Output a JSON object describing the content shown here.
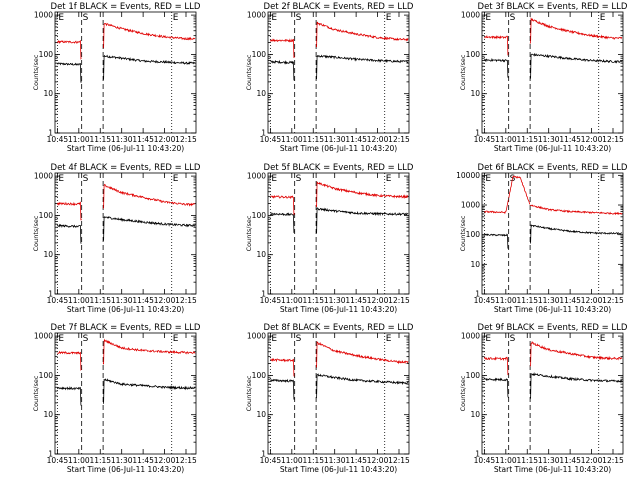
{
  "figure": {
    "background": "#ffffff",
    "series_colors": {
      "events": "#000000",
      "lld": "#e00000"
    },
    "marker_labels": {
      "e": "E",
      "s": "S"
    }
  },
  "chart_data": [
    {
      "type": "line",
      "title": "Det 1f BLACK = Events, RED = LLD",
      "xlabel": "Start Time (06-Jul-11 10:43:20)",
      "ylabel": "Counts/sec",
      "yscale": "log",
      "ylim": [
        1,
        1200
      ],
      "xlim": [
        "10:43:20",
        "12:22:00"
      ],
      "x_tick_labels": [
        "10:45",
        "11:00",
        "11:15",
        "11:30",
        "11:45",
        "12:00",
        "12:15"
      ],
      "y_tick_labels": [
        "1",
        "10",
        "100",
        "1000"
      ],
      "markers": {
        "E_start": "10:45",
        "S_start": "11:02",
        "S_end": "11:17",
        "E_end": "12:05"
      },
      "series": [
        {
          "name": "Events",
          "color": "#000000",
          "x": [
            "10:45",
            "11:00",
            "11:17",
            "11:30",
            "11:45",
            "12:00",
            "12:15"
          ],
          "values": [
            58,
            55,
            92,
            80,
            68,
            64,
            60
          ]
        },
        {
          "name": "LLD",
          "color": "#e00000",
          "x": [
            "10:45",
            "11:00",
            "11:17",
            "11:30",
            "11:45",
            "12:00",
            "12:15"
          ],
          "values": [
            210,
            205,
            620,
            450,
            340,
            280,
            250
          ]
        }
      ]
    },
    {
      "type": "line",
      "title": "Det 2f BLACK = Events, RED = LLD",
      "xlabel": "Start Time (06-Jul-11 10:43:20)",
      "ylabel": "Counts/sec",
      "yscale": "log",
      "ylim": [
        1,
        1200
      ],
      "xlim": [
        "10:43:20",
        "12:22:00"
      ],
      "x_tick_labels": [
        "10:45",
        "11:00",
        "11:15",
        "11:30",
        "11:45",
        "12:00",
        "12:15"
      ],
      "y_tick_labels": [
        "1",
        "10",
        "100",
        "1000"
      ],
      "markers": {
        "E_start": "10:45",
        "S_start": "11:02",
        "S_end": "11:17",
        "E_end": "12:05"
      },
      "series": [
        {
          "name": "Events",
          "color": "#000000",
          "x": [
            "10:45",
            "11:00",
            "11:17",
            "11:30",
            "11:45",
            "12:00",
            "12:15"
          ],
          "values": [
            65,
            62,
            92,
            85,
            75,
            70,
            66
          ]
        },
        {
          "name": "LLD",
          "color": "#e00000",
          "x": [
            "10:45",
            "11:00",
            "11:17",
            "11:30",
            "11:45",
            "12:00",
            "12:15"
          ],
          "values": [
            230,
            225,
            650,
            430,
            330,
            270,
            240
          ]
        }
      ]
    },
    {
      "type": "line",
      "title": "Det 3f BLACK = Events, RED = LLD",
      "xlabel": "Start Time (06-Jul-11 10:43:20)",
      "ylabel": "Counts/sec",
      "yscale": "log",
      "ylim": [
        1,
        1200
      ],
      "xlim": [
        "10:43:20",
        "12:22:00"
      ],
      "x_tick_labels": [
        "10:45",
        "11:00",
        "11:15",
        "11:30",
        "11:45",
        "12:00",
        "12:15"
      ],
      "y_tick_labels": [
        "1",
        "10",
        "100",
        "1000"
      ],
      "markers": {
        "E_start": "10:45",
        "S_start": "11:02",
        "S_end": "11:17",
        "E_end": "12:05"
      },
      "series": [
        {
          "name": "Events",
          "color": "#000000",
          "x": [
            "10:45",
            "11:00",
            "11:17",
            "11:30",
            "11:45",
            "12:00",
            "12:15"
          ],
          "values": [
            72,
            70,
            100,
            90,
            78,
            70,
            66
          ]
        },
        {
          "name": "LLD",
          "color": "#e00000",
          "x": [
            "10:45",
            "11:00",
            "11:17",
            "11:30",
            "11:45",
            "12:00",
            "12:15"
          ],
          "values": [
            280,
            270,
            800,
            520,
            380,
            300,
            260
          ]
        }
      ]
    },
    {
      "type": "line",
      "title": "Det 4f BLACK = Events, RED = LLD",
      "xlabel": "Start Time (06-Jul-11 10:43:20)",
      "ylabel": "Counts/sec",
      "yscale": "log",
      "ylim": [
        1,
        1200
      ],
      "xlim": [
        "10:43:20",
        "12:22:00"
      ],
      "x_tick_labels": [
        "10:45",
        "11:00",
        "11:15",
        "11:30",
        "11:45",
        "12:00",
        "12:15"
      ],
      "y_tick_labels": [
        "1",
        "10",
        "100",
        "1000"
      ],
      "markers": {
        "E_start": "10:45",
        "S_start": "11:02",
        "S_end": "11:17",
        "E_end": "12:05"
      },
      "series": [
        {
          "name": "Events",
          "color": "#000000",
          "x": [
            "10:45",
            "11:00",
            "11:17",
            "11:30",
            "11:45",
            "12:00",
            "12:15"
          ],
          "values": [
            55,
            52,
            92,
            78,
            68,
            60,
            56
          ]
        },
        {
          "name": "LLD",
          "color": "#e00000",
          "x": [
            "10:45",
            "11:00",
            "11:17",
            "11:30",
            "11:45",
            "12:00",
            "12:15"
          ],
          "values": [
            200,
            195,
            600,
            380,
            290,
            220,
            190
          ]
        }
      ]
    },
    {
      "type": "line",
      "title": "Det 5f BLACK = Events, RED = LLD",
      "xlabel": "Start Time (06-Jul-11 10:43:20)",
      "ylabel": "Counts/sec",
      "yscale": "log",
      "ylim": [
        1,
        1200
      ],
      "xlim": [
        "10:43:20",
        "12:22:00"
      ],
      "x_tick_labels": [
        "10:45",
        "11:00",
        "11:15",
        "11:30",
        "11:45",
        "12:00",
        "12:15"
      ],
      "y_tick_labels": [
        "1",
        "10",
        "100",
        "1000"
      ],
      "markers": {
        "E_start": "10:45",
        "S_start": "11:02",
        "S_end": "11:17",
        "E_end": "12:05"
      },
      "series": [
        {
          "name": "Events",
          "color": "#000000",
          "x": [
            "10:45",
            "11:00",
            "11:17",
            "11:30",
            "11:45",
            "12:00",
            "12:15"
          ],
          "values": [
            110,
            105,
            150,
            130,
            115,
            110,
            108
          ]
        },
        {
          "name": "LLD",
          "color": "#e00000",
          "x": [
            "10:45",
            "11:00",
            "11:17",
            "11:30",
            "11:45",
            "12:00",
            "12:15"
          ],
          "values": [
            300,
            290,
            700,
            480,
            380,
            320,
            300
          ]
        }
      ]
    },
    {
      "type": "line",
      "title": "Det 6f BLACK = Events, RED = LLD",
      "xlabel": "Start Time (06-Jul-11 10:43:20)",
      "ylabel": "Counts/sec",
      "yscale": "log",
      "ylim": [
        1,
        12000
      ],
      "xlim": [
        "10:43:20",
        "12:22:00"
      ],
      "x_tick_labels": [
        "10:45",
        "11:00",
        "11:15",
        "11:30",
        "11:45",
        "12:00",
        "12:15"
      ],
      "y_tick_labels": [
        "1",
        "10",
        "100",
        "1000",
        "10000"
      ],
      "markers": {
        "E_start": "10:45",
        "S_start": "11:02",
        "S_end": "11:17",
        "E_end": "12:05"
      },
      "series": [
        {
          "name": "Events",
          "color": "#000000",
          "x": [
            "10:45",
            "11:00",
            "11:17",
            "11:30",
            "11:45",
            "12:00",
            "12:15"
          ],
          "values": [
            100,
            95,
            210,
            160,
            130,
            115,
            110
          ]
        },
        {
          "name": "LLD",
          "color": "#e00000",
          "x": [
            "10:45",
            "11:00",
            "11:05",
            "11:10",
            "11:17",
            "11:30",
            "11:45",
            "12:00",
            "12:15"
          ],
          "values": [
            600,
            560,
            9000,
            8500,
            1000,
            700,
            600,
            560,
            520
          ]
        }
      ]
    },
    {
      "type": "line",
      "title": "Det 7f BLACK = Events, RED = LLD",
      "xlabel": "Start Time (06-Jul-11 10:43:20)",
      "ylabel": "Counts/sec",
      "yscale": "log",
      "ylim": [
        1,
        1200
      ],
      "xlim": [
        "10:43:20",
        "12:22:00"
      ],
      "x_tick_labels": [
        "10:45",
        "11:00",
        "11:15",
        "11:30",
        "11:45",
        "12:00",
        "12:15"
      ],
      "y_tick_labels": [
        "1",
        "10",
        "100",
        "1000"
      ],
      "markers": {
        "E_start": "10:45",
        "S_start": "11:02",
        "S_end": "11:17",
        "E_end": "12:05"
      },
      "series": [
        {
          "name": "Events",
          "color": "#000000",
          "x": [
            "10:45",
            "11:00",
            "11:17",
            "11:30",
            "11:45",
            "12:00",
            "12:15"
          ],
          "values": [
            48,
            46,
            80,
            60,
            55,
            50,
            48
          ]
        },
        {
          "name": "LLD",
          "color": "#e00000",
          "x": [
            "10:45",
            "11:00",
            "11:17",
            "11:30",
            "11:45",
            "12:00",
            "12:15"
          ],
          "values": [
            380,
            370,
            800,
            500,
            430,
            400,
            380
          ]
        }
      ]
    },
    {
      "type": "line",
      "title": "Det 8f BLACK = Events, RED = LLD",
      "xlabel": "Start Time (06-Jul-11 10:43:20)",
      "ylabel": "Counts/sec",
      "yscale": "log",
      "ylim": [
        1,
        1200
      ],
      "xlim": [
        "10:43:20",
        "12:22:00"
      ],
      "x_tick_labels": [
        "10:45",
        "11:00",
        "11:15",
        "11:30",
        "11:45",
        "12:00",
        "12:15"
      ],
      "y_tick_labels": [
        "1",
        "10",
        "100",
        "1000"
      ],
      "markers": {
        "E_start": "10:45",
        "S_start": "11:02",
        "S_end": "11:17",
        "E_end": "12:05"
      },
      "series": [
        {
          "name": "Events",
          "color": "#000000",
          "x": [
            "10:45",
            "11:00",
            "11:17",
            "11:30",
            "11:45",
            "12:00",
            "12:15"
          ],
          "values": [
            75,
            72,
            105,
            88,
            75,
            70,
            65
          ]
        },
        {
          "name": "LLD",
          "color": "#e00000",
          "x": [
            "10:45",
            "11:00",
            "11:17",
            "11:30",
            "11:45",
            "12:00",
            "12:15"
          ],
          "values": [
            250,
            240,
            700,
            420,
            320,
            260,
            220
          ]
        }
      ]
    },
    {
      "type": "line",
      "title": "Det 9f BLACK = Events, RED = LLD",
      "xlabel": "Start Time (06-Jul-11 10:43:20)",
      "ylabel": "Counts/sec",
      "yscale": "log",
      "ylim": [
        1,
        1200
      ],
      "xlim": [
        "10:43:20",
        "12:22:00"
      ],
      "x_tick_labels": [
        "10:45",
        "11:00",
        "11:15",
        "11:30",
        "11:45",
        "12:00",
        "12:15"
      ],
      "y_tick_labels": [
        "1",
        "10",
        "100",
        "1000"
      ],
      "markers": {
        "E_start": "10:45",
        "S_start": "11:02",
        "S_end": "11:17",
        "E_end": "12:05"
      },
      "series": [
        {
          "name": "Events",
          "color": "#000000",
          "x": [
            "10:45",
            "11:00",
            "11:17",
            "11:30",
            "11:45",
            "12:00",
            "12:15"
          ],
          "values": [
            80,
            78,
            110,
            95,
            82,
            75,
            72
          ]
        },
        {
          "name": "LLD",
          "color": "#e00000",
          "x": [
            "10:45",
            "11:00",
            "11:17",
            "11:30",
            "11:45",
            "12:00",
            "12:15"
          ],
          "values": [
            270,
            265,
            700,
            450,
            360,
            290,
            270
          ]
        }
      ]
    }
  ]
}
